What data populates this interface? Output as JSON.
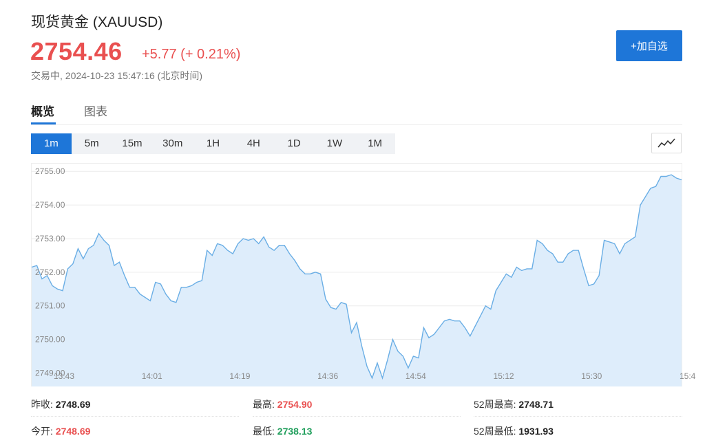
{
  "header": {
    "title": "现货黄金 (XAUUSD)",
    "price": "2754.46",
    "change": "+5.77 (+ 0.21%)",
    "status": "交易中, 2024-10-23 15:47:16 (北京时间)",
    "add_button": "+加自选"
  },
  "tabs": [
    {
      "label": "概览",
      "active": true
    },
    {
      "label": "图表",
      "active": false
    }
  ],
  "periods": [
    "1m",
    "5m",
    "15m",
    "30m",
    "1H",
    "4H",
    "1D",
    "1W",
    "1M"
  ],
  "active_period": "1m",
  "chart_type_icon": "line-chart-icon",
  "colors": {
    "up": "#e95050",
    "down": "#1f9e5b",
    "accent": "#1e76d8",
    "line": "#6aaee5",
    "fill": "#deedfb"
  },
  "chart_data": {
    "type": "area",
    "x_tick_labels": [
      "13:43",
      "14:01",
      "14:19",
      "14:36",
      "14:54",
      "15:12",
      "15:30",
      "15:4"
    ],
    "y_ticks": [
      2749.0,
      2750.0,
      2751.0,
      2752.0,
      2753.0,
      2754.0,
      2755.0
    ],
    "ylim": [
      2748.6,
      2755.25
    ],
    "grid": true,
    "series": [
      {
        "values": [
          2752.15,
          2752.2,
          2751.8,
          2751.9,
          2751.6,
          2751.5,
          2751.45,
          2752.1,
          2752.25,
          2752.7,
          2752.4,
          2752.7,
          2752.8,
          2753.15,
          2752.95,
          2752.8,
          2752.2,
          2752.3,
          2751.9,
          2751.55,
          2751.55,
          2751.35,
          2751.25,
          2751.15,
          2751.7,
          2751.65,
          2751.35,
          2751.15,
          2751.1,
          2751.55,
          2751.55,
          2751.6,
          2751.7,
          2751.75,
          2752.65,
          2752.5,
          2752.85,
          2752.8,
          2752.65,
          2752.55,
          2752.85,
          2753.0,
          2752.95,
          2753.0,
          2752.85,
          2753.05,
          2752.75,
          2752.65,
          2752.8,
          2752.8,
          2752.55,
          2752.35,
          2752.1,
          2751.95,
          2751.95,
          2752.0,
          2751.95,
          2751.2,
          2750.95,
          2750.9,
          2751.1,
          2751.05,
          2750.2,
          2750.5,
          2749.8,
          2749.2,
          2748.85,
          2749.3,
          2748.85,
          2749.4,
          2750.0,
          2749.65,
          2749.5,
          2749.15,
          2749.5,
          2749.45,
          2750.35,
          2750.05,
          2750.15,
          2750.35,
          2750.55,
          2750.6,
          2750.55,
          2750.55,
          2750.35,
          2750.1,
          2750.4,
          2750.7,
          2751.0,
          2750.9,
          2751.45,
          2751.7,
          2751.95,
          2751.85,
          2752.15,
          2752.05,
          2752.1,
          2752.1,
          2752.95,
          2752.85,
          2752.65,
          2752.55,
          2752.3,
          2752.3,
          2752.55,
          2752.65,
          2752.65,
          2752.1,
          2751.6,
          2751.65,
          2751.9,
          2752.95,
          2752.9,
          2752.85,
          2752.55,
          2752.85,
          2752.95,
          2753.05,
          2754.0,
          2754.25,
          2754.5,
          2754.55,
          2754.85,
          2754.85,
          2754.9,
          2754.8,
          2754.75
        ]
      }
    ]
  },
  "stats": {
    "prev_close_label": "昨收:",
    "prev_close_value": "2748.69",
    "open_label": "今开:",
    "open_value": "2748.69",
    "high_label": "最高:",
    "high_value": "2754.90",
    "low_label": "最低:",
    "low_value": "2738.13",
    "week52_high_label": "52周最高:",
    "week52_high_value": "2748.71",
    "week52_low_label": "52周最低:",
    "week52_low_value": "1931.93"
  }
}
